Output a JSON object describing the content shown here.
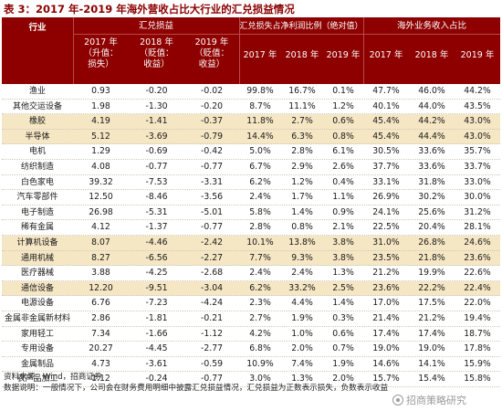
{
  "title": "表 3：2017 年-2019 年海外营收占比大行业的汇兑损益情况",
  "header": {
    "industry": "行业",
    "fx_group": "汇兑损益",
    "ratio_group": "汇兑损失占净利润比例（绝对值）",
    "overseas_group": "海外业务收入占比",
    "fx_2017_line1": "2017 年",
    "fx_2017_line2": "（升值：",
    "fx_2017_line3": "损失）",
    "fx_2018_line1": "2018 年",
    "fx_2018_line2": "（贬值：",
    "fx_2018_line3": "收益）",
    "fx_2019_line1": "2019 年",
    "fx_2019_line2": "（贬值：",
    "fx_2019_line3": "收益）",
    "r2017": "2017 年",
    "r2018": "2018 年",
    "r2019": "2019 年",
    "o2017": "2017 年",
    "o2018": "2018 年",
    "o2019": "2019 年"
  },
  "rows": [
    {
      "name": "渔业",
      "fx17": "0.93",
      "fx18": "-0.20",
      "fx19": "-0.02",
      "r17": "99.8%",
      "r18": "16.7%",
      "r19": "0.1%",
      "o17": "47.7%",
      "o18": "46.0%",
      "o19": "44.2%",
      "hl": false
    },
    {
      "name": "其他交运设备",
      "fx17": "1.98",
      "fx18": "-1.30",
      "fx19": "-0.20",
      "r17": "8.7%",
      "r18": "11.1%",
      "r19": "1.2%",
      "o17": "40.1%",
      "o18": "44.0%",
      "o19": "43.5%",
      "hl": false
    },
    {
      "name": "橡胶",
      "fx17": "4.19",
      "fx18": "-1.41",
      "fx19": "-0.37",
      "r17": "11.8%",
      "r18": "2.7%",
      "r19": "0.6%",
      "o17": "45.4%",
      "o18": "44.2%",
      "o19": "43.0%",
      "hl": true
    },
    {
      "name": "半导体",
      "fx17": "5.12",
      "fx18": "-3.69",
      "fx19": "-0.79",
      "r17": "14.4%",
      "r18": "6.3%",
      "r19": "0.8%",
      "o17": "45.4%",
      "o18": "44.4%",
      "o19": "43.0%",
      "hl": true
    },
    {
      "name": "电机",
      "fx17": "1.29",
      "fx18": "-0.69",
      "fx19": "-0.42",
      "r17": "5.0%",
      "r18": "2.8%",
      "r19": "6.1%",
      "o17": "30.5%",
      "o18": "33.6%",
      "o19": "35.7%",
      "hl": false
    },
    {
      "name": "纺织制造",
      "fx17": "4.08",
      "fx18": "-0.77",
      "fx19": "-0.77",
      "r17": "6.7%",
      "r18": "2.9%",
      "r19": "2.6%",
      "o17": "37.7%",
      "o18": "33.6%",
      "o19": "33.7%",
      "hl": false
    },
    {
      "name": "白色家电",
      "fx17": "39.32",
      "fx18": "-7.53",
      "fx19": "-3.31",
      "r17": "6.2%",
      "r18": "1.2%",
      "r19": "0.4%",
      "o17": "33.1%",
      "o18": "31.8%",
      "o19": "33.0%",
      "hl": false
    },
    {
      "name": "汽车零部件",
      "fx17": "12.50",
      "fx18": "-8.46",
      "fx19": "-3.56",
      "r17": "2.4%",
      "r18": "1.7%",
      "r19": "1.1%",
      "o17": "26.9%",
      "o18": "30.2%",
      "o19": "30.0%",
      "hl": false
    },
    {
      "name": "电子制造",
      "fx17": "26.98",
      "fx18": "-5.31",
      "fx19": "-5.01",
      "r17": "5.8%",
      "r18": "1.4%",
      "r19": "0.9%",
      "o17": "24.1%",
      "o18": "25.6%",
      "o19": "31.2%",
      "hl": false
    },
    {
      "name": "稀有金属",
      "fx17": "4.12",
      "fx18": "-1.37",
      "fx19": "-0.77",
      "r17": "2.8%",
      "r18": "0.8%",
      "r19": "2.1%",
      "o17": "22.5%",
      "o18": "20.4%",
      "o19": "28.1%",
      "hl": false
    },
    {
      "name": "计算机设备",
      "fx17": "8.07",
      "fx18": "-4.46",
      "fx19": "-2.42",
      "r17": "10.1%",
      "r18": "13.8%",
      "r19": "3.8%",
      "o17": "31.0%",
      "o18": "26.8%",
      "o19": "24.6%",
      "hl": true
    },
    {
      "name": "通用机械",
      "fx17": "8.27",
      "fx18": "-6.56",
      "fx19": "-2.27",
      "r17": "7.7%",
      "r18": "9.3%",
      "r19": "3.8%",
      "o17": "23.5%",
      "o18": "21.8%",
      "o19": "23.6%",
      "hl": true
    },
    {
      "name": "医疗器械",
      "fx17": "3.88",
      "fx18": "-4.25",
      "fx19": "-2.68",
      "r17": "2.4%",
      "r18": "2.4%",
      "r19": "1.3%",
      "o17": "21.2%",
      "o18": "19.9%",
      "o19": "22.6%",
      "hl": false
    },
    {
      "name": "通信设备",
      "fx17": "12.20",
      "fx18": "-9.51",
      "fx19": "-3.04",
      "r17": "6.2%",
      "r18": "33.2%",
      "r19": "2.5%",
      "o17": "23.6%",
      "o18": "22.2%",
      "o19": "22.4%",
      "hl": true
    },
    {
      "name": "电源设备",
      "fx17": "6.76",
      "fx18": "-7.23",
      "fx19": "-4.24",
      "r17": "2.3%",
      "r18": "4.4%",
      "r19": "1.4%",
      "o17": "17.0%",
      "o18": "17.5%",
      "o19": "22.0%",
      "hl": false
    },
    {
      "name": "金属非金属新材料",
      "fx17": "2.86",
      "fx18": "-1.81",
      "fx19": "-0.21",
      "r17": "2.7%",
      "r18": "1.9%",
      "r19": "0.3%",
      "o17": "21.4%",
      "o18": "21.2%",
      "o19": "19.4%",
      "hl": false
    },
    {
      "name": "家用轻工",
      "fx17": "7.34",
      "fx18": "-1.66",
      "fx19": "-1.12",
      "r17": "4.2%",
      "r18": "1.0%",
      "r19": "0.6%",
      "o17": "17.4%",
      "o18": "17.4%",
      "o19": "18.7%",
      "hl": false
    },
    {
      "name": "专用设备",
      "fx17": "20.27",
      "fx18": "-4.45",
      "fx19": "-2.77",
      "r17": "6.8%",
      "r18": "2.0%",
      "r19": "0.7%",
      "o17": "19.0%",
      "o18": "19.0%",
      "o19": "17.8%",
      "hl": false
    },
    {
      "name": "金属制品",
      "fx17": "4.73",
      "fx18": "-3.61",
      "fx19": "-0.59",
      "r17": "10.9%",
      "r18": "7.4%",
      "r19": "1.9%",
      "o17": "14.6%",
      "o18": "14.1%",
      "o19": "15.9%",
      "hl": false
    },
    {
      "name": "农产品加工",
      "fx17": "1.12",
      "fx18": "-0.24",
      "fx19": "-0.77",
      "r17": "3.0%",
      "r18": "1.3%",
      "r19": "2.0%",
      "o17": "15.7%",
      "o18": "15.4%",
      "o19": "15.8%",
      "hl": false
    }
  ],
  "footer": {
    "source": "资料来源：Wind，招商证券",
    "note": "数据说明：一般情况下，公司会在财务费用明细中披露汇兑损益情况，汇兑损益为正数表示损失，负数表示收益"
  },
  "watermark": "招商策略研究"
}
